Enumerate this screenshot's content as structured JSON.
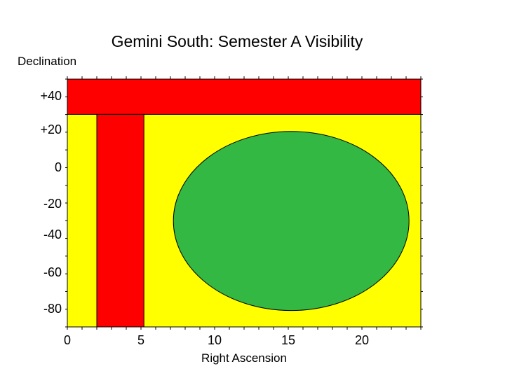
{
  "chart_data": {
    "type": "diagram",
    "title": "Gemini South: Semester A Visibility",
    "xlabel": "Right Ascension",
    "ylabel": "Declination",
    "xlim": [
      0,
      24
    ],
    "ylim": [
      -90,
      50
    ],
    "x_ticks": [
      {
        "value": 0,
        "label": "0"
      },
      {
        "value": 5,
        "label": "5"
      },
      {
        "value": 10,
        "label": "10"
      },
      {
        "value": 15,
        "label": "15"
      },
      {
        "value": 20,
        "label": "20"
      }
    ],
    "y_ticks": [
      {
        "value": 40,
        "label": "+40"
      },
      {
        "value": 20,
        "label": "+20"
      },
      {
        "value": 0,
        "label": "0"
      },
      {
        "value": -20,
        "label": "-20"
      },
      {
        "value": -40,
        "label": "-40"
      },
      {
        "value": -60,
        "label": "-60"
      },
      {
        "value": -80,
        "label": "-80"
      }
    ],
    "colors": {
      "background": "#ffff00",
      "band": "#ff0000",
      "ellipse": "#33b843"
    },
    "regions": [
      {
        "shape": "rect",
        "fill": "band",
        "ra_range": [
          0,
          24
        ],
        "dec_range": [
          29,
          50
        ]
      },
      {
        "shape": "rect",
        "fill": "band",
        "ra_range": [
          2,
          5.2
        ],
        "dec_range": [
          -90,
          29
        ]
      },
      {
        "shape": "ellipse",
        "fill": "ellipse",
        "ra_center": 15.2,
        "dec_center": -31,
        "ra_radius": 8,
        "dec_radius": 50
      }
    ]
  }
}
